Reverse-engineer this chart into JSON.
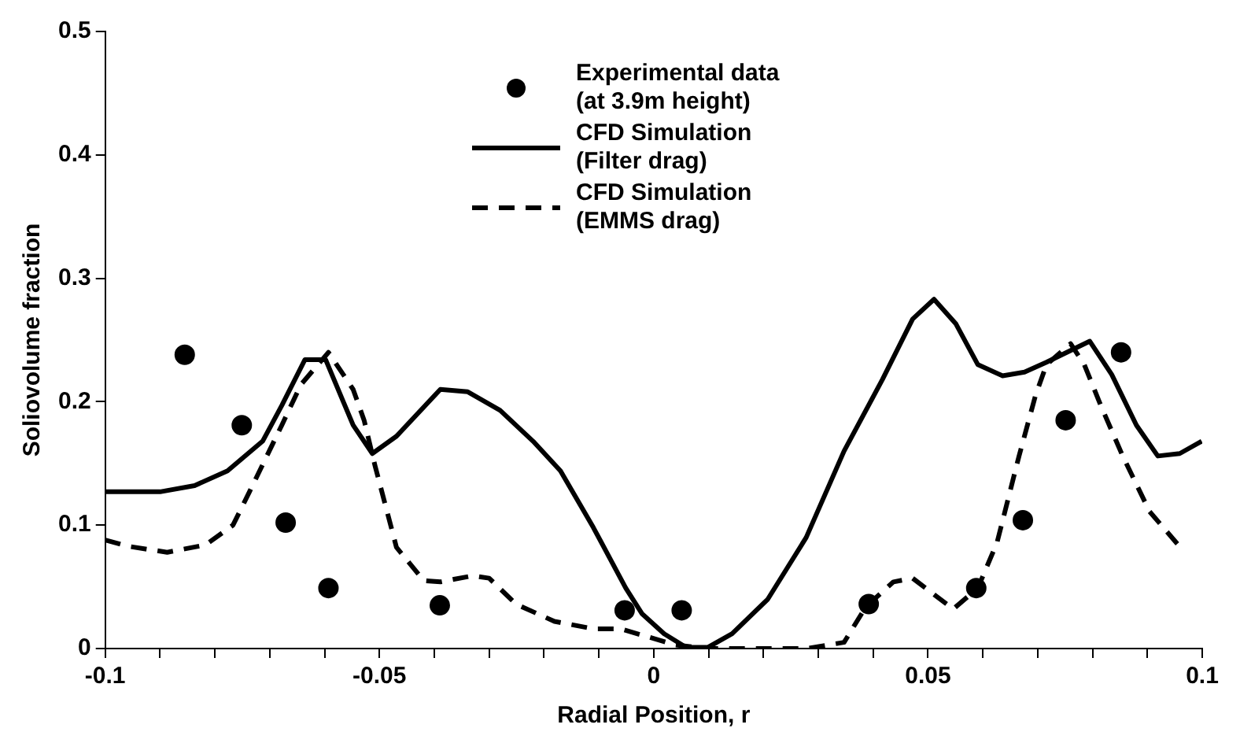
{
  "chart_data": {
    "type": "line",
    "xlabel": "Radial Position, r",
    "ylabel": "Soliovolume fraction",
    "xlim": [
      -0.1,
      0.1
    ],
    "ylim": [
      0,
      0.5
    ],
    "xticks": [
      -0.1,
      {
        "value": -0.09,
        "label": null
      },
      {
        "value": -0.08,
        "label": null
      },
      {
        "value": -0.07,
        "label": null
      },
      {
        "value": -0.06,
        "label": null
      },
      -0.05,
      {
        "value": -0.04,
        "label": null
      },
      {
        "value": -0.03,
        "label": null
      },
      {
        "value": -0.02,
        "label": null
      },
      {
        "value": -0.01,
        "label": null
      },
      0,
      {
        "value": 0.01,
        "label": null
      },
      {
        "value": 0.02,
        "label": null
      },
      {
        "value": 0.03,
        "label": null
      },
      {
        "value": 0.04,
        "label": null
      },
      0.05,
      {
        "value": 0.06,
        "label": null
      },
      {
        "value": 0.07,
        "label": null
      },
      {
        "value": 0.08,
        "label": null
      },
      {
        "value": 0.09,
        "label": null
      },
      0.1
    ],
    "yticks": [
      0,
      0.1,
      0.2,
      0.3,
      0.4,
      0.5
    ],
    "grid": false,
    "legend": "top",
    "series": [
      {
        "name": "Experimental data\n(at 3.9m height)",
        "type": "scatter",
        "marker": "circle",
        "color": "#000000",
        "x": [
          -0.0855,
          -0.0751,
          -0.0671,
          -0.0593,
          -0.039,
          -0.0053,
          0.0051,
          0.0392,
          0.0588,
          0.0673,
          0.0751,
          0.0852
        ],
        "values": [
          0.238,
          0.181,
          0.102,
          0.049,
          0.035,
          0.031,
          0.031,
          0.036,
          0.049,
          0.104,
          0.185,
          0.24
        ]
      },
      {
        "name": "CFD Simulation\n(Filter drag)",
        "type": "line",
        "line_style": "solid",
        "marker": "none",
        "color": "#000000",
        "x": [
          -0.1,
          -0.09,
          -0.0837,
          -0.0777,
          -0.0713,
          -0.0678,
          -0.0636,
          -0.0598,
          -0.0548,
          -0.0513,
          -0.0469,
          -0.0389,
          -0.0339,
          -0.028,
          -0.022,
          -0.017,
          -0.011,
          -0.0051,
          -0.0021,
          0.0019,
          0.0059,
          0.0099,
          0.0143,
          0.0208,
          0.0278,
          0.0347,
          0.0417,
          0.0472,
          0.0511,
          0.0551,
          0.0591,
          0.0636,
          0.0676,
          0.0716,
          0.0795,
          0.0835,
          0.088,
          0.0919,
          0.0959,
          0.0999
        ],
        "values": [
          0.127,
          0.127,
          0.132,
          0.144,
          0.168,
          0.197,
          0.234,
          0.234,
          0.181,
          0.158,
          0.172,
          0.21,
          0.208,
          0.193,
          0.168,
          0.144,
          0.098,
          0.049,
          0.028,
          0.012,
          0.001,
          0.001,
          0.012,
          0.04,
          0.09,
          0.16,
          0.218,
          0.267,
          0.283,
          0.263,
          0.23,
          0.221,
          0.224,
          0.232,
          0.249,
          0.222,
          0.181,
          0.156,
          0.158,
          0.168
        ]
      },
      {
        "name": "CFD Simulation\n(EMMS drag)",
        "type": "line",
        "line_style": "dashed",
        "marker": "none",
        "color": "#000000",
        "x": [
          -0.1,
          -0.096,
          -0.0887,
          -0.0817,
          -0.0767,
          -0.0737,
          -0.0678,
          -0.0643,
          -0.0593,
          -0.0548,
          -0.0528,
          -0.0508,
          -0.0469,
          -0.0419,
          -0.0389,
          -0.033,
          -0.03,
          -0.0251,
          -0.0181,
          -0.011,
          -0.0061,
          0.0009,
          0.0039,
          0.0099,
          0.0178,
          0.0278,
          0.0347,
          0.0387,
          0.0437,
          0.0472,
          0.0546,
          0.0591,
          0.0626,
          0.0666,
          0.0696,
          0.0716,
          0.076,
          0.0785,
          0.0815,
          0.0855,
          0.0904,
          0.0964
        ],
        "values": [
          0.088,
          0.083,
          0.078,
          0.084,
          0.1,
          0.127,
          0.181,
          0.214,
          0.24,
          0.21,
          0.185,
          0.148,
          0.082,
          0.055,
          0.054,
          0.059,
          0.057,
          0.036,
          0.022,
          0.016,
          0.016,
          0.007,
          0.003,
          0,
          0,
          0,
          0.005,
          0.034,
          0.054,
          0.057,
          0.032,
          0.049,
          0.086,
          0.156,
          0.205,
          0.23,
          0.247,
          0.23,
          0.197,
          0.156,
          0.111,
          0.08
        ]
      }
    ]
  }
}
